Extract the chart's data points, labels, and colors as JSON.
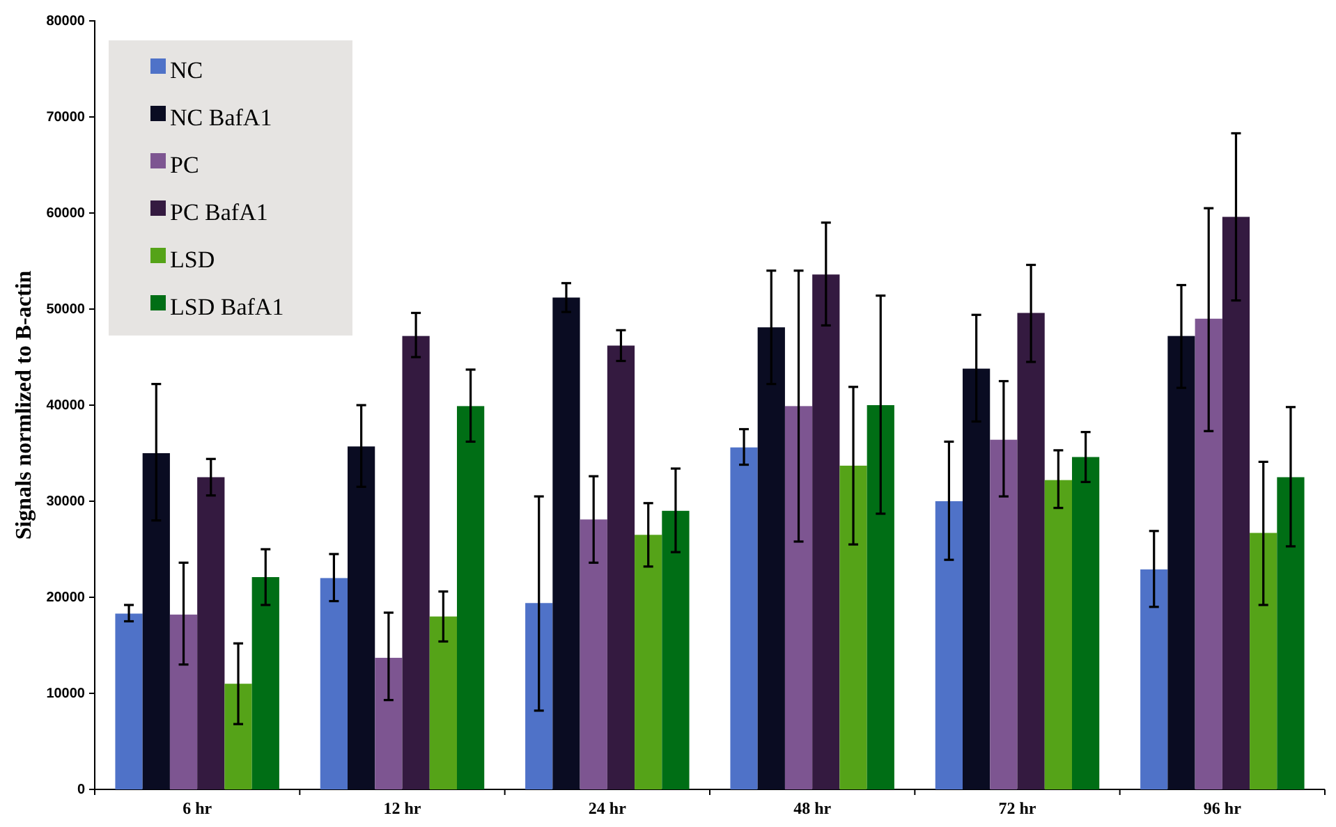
{
  "chart_data": {
    "type": "bar",
    "ylabel": "Signals normlized to B-actin",
    "categories": [
      "6 hr",
      "12 hr",
      "24 hr",
      "48 hr",
      "72 hr",
      "96 hr"
    ],
    "ylim": [
      0,
      80000
    ],
    "yticks": [
      0,
      10000,
      20000,
      30000,
      40000,
      50000,
      60000,
      70000,
      80000
    ],
    "legend": "top left",
    "grid": false,
    "series": [
      {
        "name": "NC",
        "color": "#4f72c8",
        "values": [
          18300,
          22000,
          19400,
          35600,
          30000,
          22900
        ],
        "errors": [
          [
            17500,
            19200
          ],
          [
            19600,
            24500
          ],
          [
            8200,
            30500
          ],
          [
            33800,
            37500
          ],
          [
            23900,
            36200
          ],
          [
            19000,
            26900
          ]
        ]
      },
      {
        "name": "NC BafA1",
        "color": "#0a0c22",
        "values": [
          35000,
          35700,
          51200,
          48100,
          43800,
          47200
        ],
        "errors": [
          [
            28000,
            42200
          ],
          [
            31500,
            40000
          ],
          [
            49700,
            52700
          ],
          [
            42200,
            54000
          ],
          [
            38300,
            49400
          ],
          [
            41800,
            52500
          ]
        ]
      },
      {
        "name": "PC",
        "color": "#7d5591",
        "values": [
          18200,
          13700,
          28100,
          39900,
          36400,
          49000
        ],
        "errors": [
          [
            13000,
            23600
          ],
          [
            9300,
            18400
          ],
          [
            23600,
            32600
          ],
          [
            25800,
            54000
          ],
          [
            30500,
            42500
          ],
          [
            37300,
            60500
          ]
        ]
      },
      {
        "name": "PC BafA1",
        "color": "#341a40",
        "values": [
          32500,
          47200,
          46200,
          53600,
          49600,
          59600
        ],
        "errors": [
          [
            30600,
            34400
          ],
          [
            45000,
            49600
          ],
          [
            44600,
            47800
          ],
          [
            48300,
            59000
          ],
          [
            44500,
            54600
          ],
          [
            50900,
            68300
          ]
        ]
      },
      {
        "name": "LSD",
        "color": "#55a318",
        "values": [
          11000,
          18000,
          26500,
          33700,
          32200,
          26700
        ],
        "errors": [
          [
            6800,
            15200
          ],
          [
            15400,
            20600
          ],
          [
            23200,
            29800
          ],
          [
            25500,
            41900
          ],
          [
            29300,
            35300
          ],
          [
            19200,
            34100
          ]
        ]
      },
      {
        "name": "LSD BafA1",
        "color": "#006e15",
        "values": [
          22100,
          39900,
          29000,
          40000,
          34600,
          32500
        ],
        "errors": [
          [
            19200,
            25000
          ],
          [
            36200,
            43700
          ],
          [
            24700,
            33400
          ],
          [
            28700,
            51400
          ],
          [
            32000,
            37200
          ],
          [
            25300,
            39800
          ]
        ]
      }
    ]
  }
}
